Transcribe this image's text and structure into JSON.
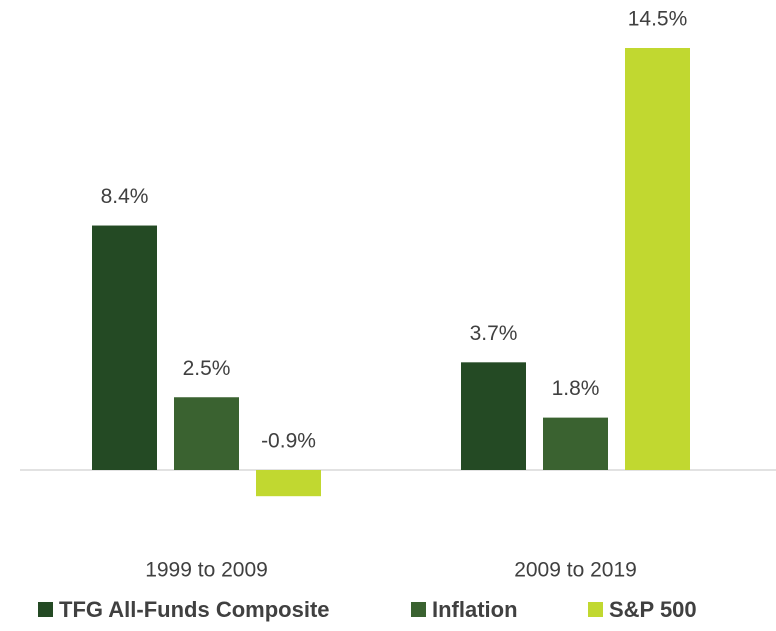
{
  "chart_data": {
    "type": "bar",
    "categories": [
      "1999 to 2009",
      "2009 to 2019"
    ],
    "series": [
      {
        "name": "TFG All-Funds Composite",
        "color": "#244a24",
        "values": [
          8.4,
          3.7
        ],
        "value_labels": [
          "8.4%",
          "3.7%"
        ]
      },
      {
        "name": "Inflation",
        "color": "#3a6230",
        "values": [
          2.5,
          1.8
        ],
        "value_labels": [
          "2.5%",
          "1.8%"
        ]
      },
      {
        "name": "S&P 500",
        "color": "#c1d830",
        "values": [
          -0.9,
          14.5
        ],
        "value_labels": [
          "-0.9%",
          "14.5%"
        ]
      }
    ]
  }
}
